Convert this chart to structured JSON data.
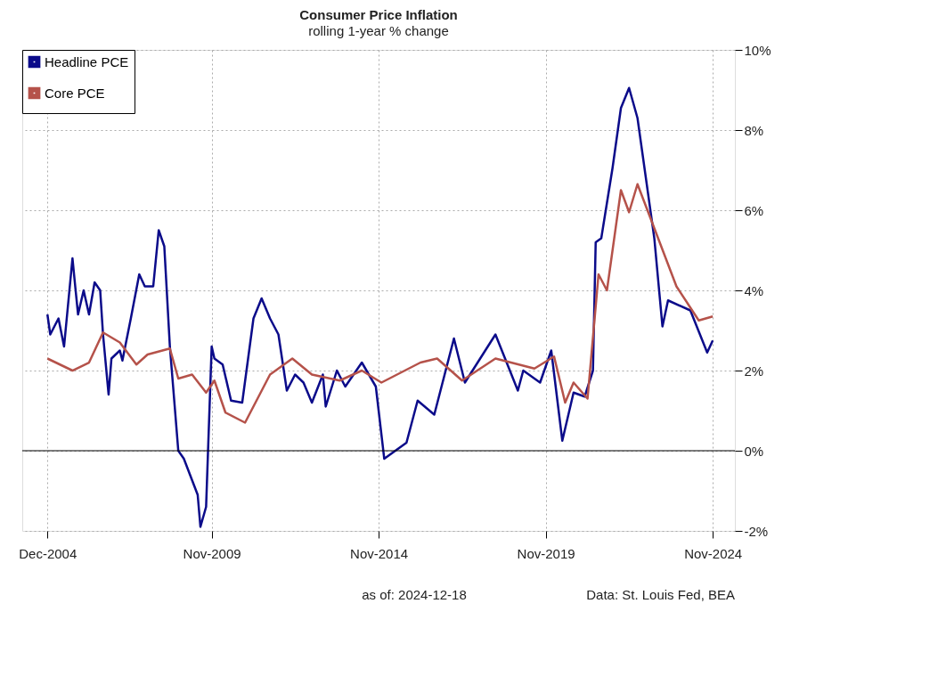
{
  "chart_data": {
    "type": "line",
    "title": "Consumer Price Inflation",
    "subtitle": "rolling 1-year % change",
    "xlim": [
      "2004-03",
      "2025-07"
    ],
    "xticks": [
      {
        "value": "2004-12",
        "label": "Dec-2004"
      },
      {
        "value": "2009-11",
        "label": "Nov-2009"
      },
      {
        "value": "2014-11",
        "label": "Nov-2014"
      },
      {
        "value": "2019-11",
        "label": "Nov-2019"
      },
      {
        "value": "2024-11",
        "label": "Nov-2024"
      }
    ],
    "ylim": [
      -2,
      10
    ],
    "yticks": [
      {
        "value": -2,
        "label": "-2%"
      },
      {
        "value": 0,
        "label": "0%"
      },
      {
        "value": 2,
        "label": "2%"
      },
      {
        "value": 4,
        "label": "4%"
      },
      {
        "value": 6,
        "label": "6%"
      },
      {
        "value": 8,
        "label": "8%"
      },
      {
        "value": 10,
        "label": "10%"
      }
    ],
    "grid": true,
    "legend": "top left",
    "line_style": "solid",
    "marker": "none",
    "ref_lines": [
      {
        "axis": "y",
        "value": 0,
        "color": "#000000"
      }
    ],
    "annotations": [
      "as of:  2024-12-18",
      "Data: St. Louis Fed, BEA"
    ],
    "series": [
      {
        "name": "Headline PCE",
        "color": "#0b0b8a",
        "x": [
          "2004-12",
          "2005-01",
          "2005-04",
          "2005-06",
          "2005-09",
          "2005-10",
          "2005-11",
          "2006-01",
          "2006-03",
          "2006-05",
          "2006-07",
          "2006-08",
          "2006-10",
          "2006-11",
          "2007-02",
          "2007-03",
          "2007-06",
          "2007-09",
          "2007-11",
          "2008-02",
          "2008-04",
          "2008-06",
          "2008-08",
          "2008-11",
          "2009-01",
          "2009-06",
          "2009-07",
          "2009-09",
          "2009-11",
          "2009-12",
          "2010-03",
          "2010-06",
          "2010-10",
          "2011-02",
          "2011-05",
          "2011-08",
          "2011-11",
          "2012-02",
          "2012-05",
          "2012-08",
          "2012-11",
          "2013-03",
          "2013-04",
          "2013-08",
          "2013-11",
          "2014-05",
          "2014-10",
          "2015-01",
          "2015-09",
          "2016-01",
          "2016-07",
          "2017-02",
          "2017-06",
          "2018-05",
          "2019-01",
          "2019-03",
          "2019-09",
          "2020-01",
          "2020-05",
          "2020-09",
          "2021-01",
          "2021-04",
          "2021-05",
          "2021-07",
          "2021-11",
          "2022-02",
          "2022-05",
          "2022-08",
          "2023-02",
          "2023-05",
          "2023-07",
          "2024-03",
          "2024-09",
          "2024-11"
        ],
        "values": [
          3.4,
          2.9,
          3.3,
          2.6,
          4.8,
          4.1,
          3.4,
          4.0,
          3.4,
          4.2,
          4.0,
          2.9,
          1.4,
          2.3,
          2.5,
          2.25,
          3.3,
          4.4,
          4.1,
          4.1,
          5.5,
          5.1,
          2.6,
          0.0,
          -0.2,
          -1.1,
          -1.9,
          -1.4,
          2.6,
          2.3,
          2.15,
          1.25,
          1.2,
          3.3,
          3.8,
          3.3,
          2.9,
          1.5,
          1.9,
          1.7,
          1.2,
          1.9,
          1.1,
          2.0,
          1.6,
          2.2,
          1.6,
          -0.2,
          0.2,
          1.25,
          0.9,
          2.8,
          1.7,
          2.9,
          1.5,
          2.0,
          1.7,
          2.5,
          0.25,
          1.45,
          1.35,
          2.0,
          5.2,
          5.3,
          7.05,
          8.55,
          9.05,
          8.3,
          5.3,
          3.1,
          3.75,
          3.5,
          2.45,
          2.75
        ]
      },
      {
        "name": "Core PCE",
        "color": "#b5524a",
        "x": [
          "2004-12",
          "2005-09",
          "2006-03",
          "2006-08",
          "2007-02",
          "2007-08",
          "2007-12",
          "2008-08",
          "2008-11",
          "2009-04",
          "2009-09",
          "2009-12",
          "2010-04",
          "2010-11",
          "2011-08",
          "2012-04",
          "2012-11",
          "2013-09",
          "2014-05",
          "2014-12",
          "2016-02",
          "2016-08",
          "2017-05",
          "2018-05",
          "2019-07",
          "2020-02",
          "2020-06",
          "2020-09",
          "2021-02",
          "2021-06",
          "2021-09",
          "2022-02",
          "2022-05",
          "2022-08",
          "2023-02",
          "2023-10",
          "2024-06",
          "2024-11"
        ],
        "values": [
          2.3,
          2.0,
          2.2,
          2.95,
          2.7,
          2.15,
          2.4,
          2.55,
          1.8,
          1.9,
          1.45,
          1.75,
          0.95,
          0.7,
          1.9,
          2.3,
          1.9,
          1.75,
          2.0,
          1.7,
          2.2,
          2.3,
          1.75,
          2.3,
          2.05,
          2.35,
          1.2,
          1.7,
          1.3,
          4.4,
          4.0,
          6.5,
          5.95,
          6.65,
          5.55,
          4.1,
          3.25,
          3.35
        ]
      }
    ]
  }
}
